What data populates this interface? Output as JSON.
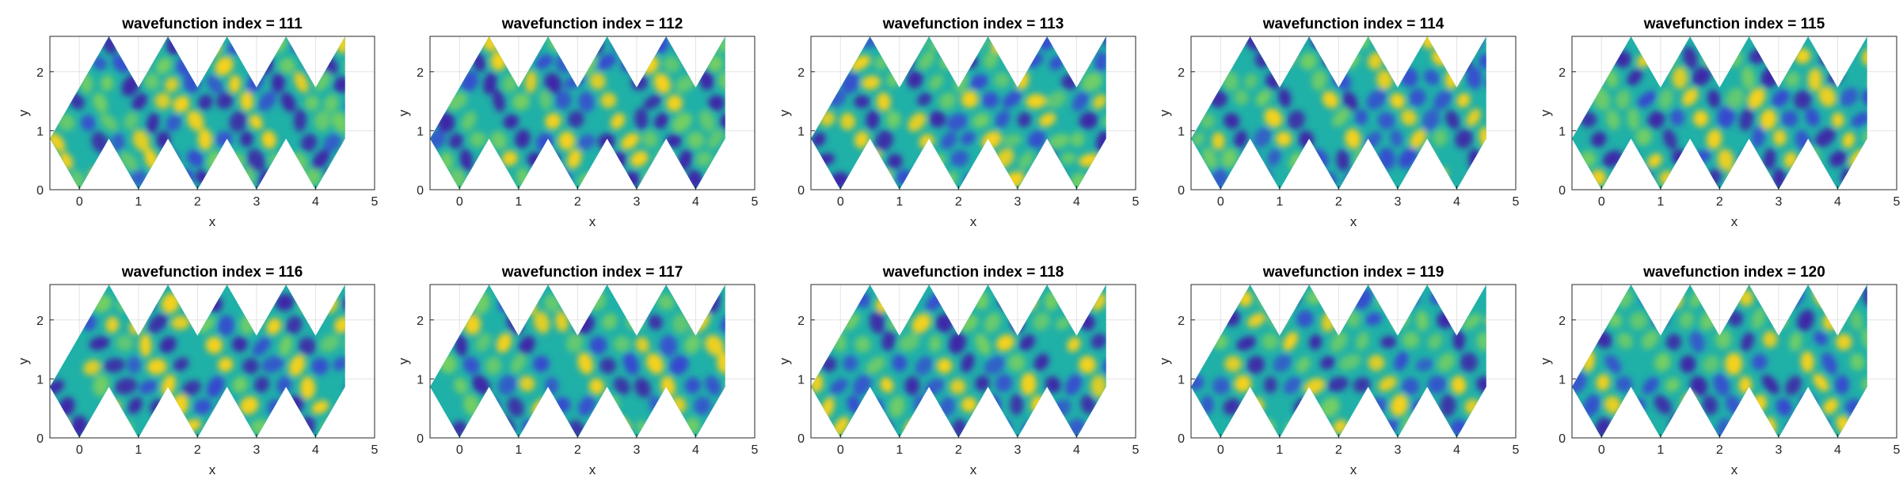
{
  "chart_data": [
    {
      "type": "heatmap",
      "title": "wavefunction index = 111",
      "xlabel": "x",
      "ylabel": "y",
      "xlim": [
        -0.5,
        5
      ],
      "ylim": [
        0,
        2.6
      ],
      "xticks": [
        "0",
        "1",
        "2",
        "3",
        "4",
        "5"
      ],
      "yticks": [
        "0",
        "1",
        "2"
      ],
      "grid": true,
      "colormap": "parula",
      "domain": "zigzag strip of 5 rhombi with unit triangles"
    },
    {
      "type": "heatmap",
      "title": "wavefunction index = 112",
      "xlabel": "x",
      "ylabel": "y",
      "xlim": [
        -0.5,
        5
      ],
      "ylim": [
        0,
        2.6
      ],
      "xticks": [
        "0",
        "1",
        "2",
        "3",
        "4",
        "5"
      ],
      "yticks": [
        "0",
        "1",
        "2"
      ],
      "grid": true,
      "colormap": "parula"
    },
    {
      "type": "heatmap",
      "title": "wavefunction index = 113",
      "xlabel": "x",
      "ylabel": "y",
      "xlim": [
        -0.5,
        5
      ],
      "ylim": [
        0,
        2.6
      ],
      "xticks": [
        "0",
        "1",
        "2",
        "3",
        "4",
        "5"
      ],
      "yticks": [
        "0",
        "1",
        "2"
      ],
      "grid": true,
      "colormap": "parula"
    },
    {
      "type": "heatmap",
      "title": "wavefunction index = 114",
      "xlabel": "x",
      "ylabel": "y",
      "xlim": [
        -0.5,
        5
      ],
      "ylim": [
        0,
        2.6
      ],
      "xticks": [
        "0",
        "1",
        "2",
        "3",
        "4",
        "5"
      ],
      "yticks": [
        "0",
        "1",
        "2"
      ],
      "grid": true,
      "colormap": "parula"
    },
    {
      "type": "heatmap",
      "title": "wavefunction index = 115",
      "xlabel": "x",
      "ylabel": "y",
      "xlim": [
        -0.5,
        5
      ],
      "ylim": [
        0,
        2.6
      ],
      "xticks": [
        "0",
        "1",
        "2",
        "3",
        "4",
        "5"
      ],
      "yticks": [
        "0",
        "1",
        "2"
      ],
      "grid": true,
      "colormap": "parula"
    },
    {
      "type": "heatmap",
      "title": "wavefunction index = 116",
      "xlabel": "x",
      "ylabel": "y",
      "xlim": [
        -0.5,
        5
      ],
      "ylim": [
        0,
        2.6
      ],
      "xticks": [
        "0",
        "1",
        "2",
        "3",
        "4",
        "5"
      ],
      "yticks": [
        "0",
        "1",
        "2"
      ],
      "grid": true,
      "colormap": "parula"
    },
    {
      "type": "heatmap",
      "title": "wavefunction index = 117",
      "xlabel": "x",
      "ylabel": "y",
      "xlim": [
        -0.5,
        5
      ],
      "ylim": [
        0,
        2.6
      ],
      "xticks": [
        "0",
        "1",
        "2",
        "3",
        "4",
        "5"
      ],
      "yticks": [
        "0",
        "1",
        "2"
      ],
      "grid": true,
      "colormap": "parula"
    },
    {
      "type": "heatmap",
      "title": "wavefunction index = 118",
      "xlabel": "x",
      "ylabel": "y",
      "xlim": [
        -0.5,
        5
      ],
      "ylim": [
        0,
        2.6
      ],
      "xticks": [
        "0",
        "1",
        "2",
        "3",
        "4",
        "5"
      ],
      "yticks": [
        "0",
        "1",
        "2"
      ],
      "grid": true,
      "colormap": "parula"
    },
    {
      "type": "heatmap",
      "title": "wavefunction index = 119",
      "xlabel": "x",
      "ylabel": "y",
      "xlim": [
        -0.5,
        5
      ],
      "ylim": [
        0,
        2.6
      ],
      "xticks": [
        "0",
        "1",
        "2",
        "3",
        "4",
        "5"
      ],
      "yticks": [
        "0",
        "1",
        "2"
      ],
      "grid": true,
      "colormap": "parula"
    },
    {
      "type": "heatmap",
      "title": "wavefunction index = 120",
      "xlabel": "x",
      "ylabel": "y",
      "xlim": [
        -0.5,
        5
      ],
      "ylim": [
        0,
        2.6
      ],
      "xticks": [
        "0",
        "1",
        "2",
        "3",
        "4",
        "5"
      ],
      "yticks": [
        "0",
        "1",
        "2"
      ],
      "grid": true,
      "colormap": "parula"
    }
  ],
  "colors": {
    "axis": "#262626",
    "grid": "#e3e3e3",
    "field_mid": "#1fb0a8",
    "field_low": "#3a3ad6",
    "field_min": "#3e26a8",
    "field_high": "#f5d11a",
    "field_light": "#7fd35a"
  }
}
